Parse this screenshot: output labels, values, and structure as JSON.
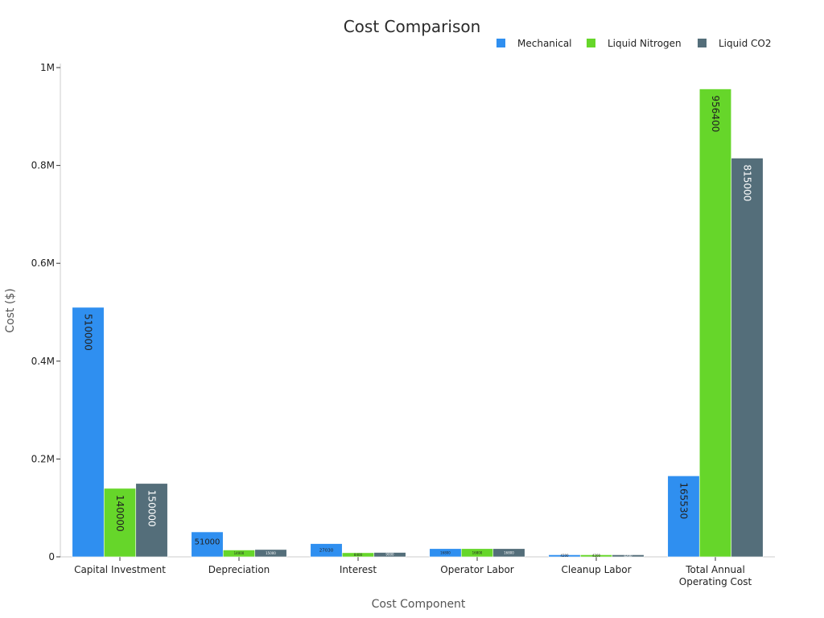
{
  "chart_data": {
    "type": "bar",
    "title": "Cost Comparison",
    "xlabel": "Cost Component",
    "ylabel": "Cost ($)",
    "ylim": [
      0,
      1000000
    ],
    "yticks": [
      {
        "value": 0,
        "label": "0"
      },
      {
        "value": 200000,
        "label": "0.2M"
      },
      {
        "value": 400000,
        "label": "0.4M"
      },
      {
        "value": 600000,
        "label": "0.6M"
      },
      {
        "value": 800000,
        "label": "0.8M"
      },
      {
        "value": 1000000,
        "label": "1M"
      }
    ],
    "categories": [
      [
        "Capital Investment"
      ],
      [
        "Depreciation"
      ],
      [
        "Interest"
      ],
      [
        "Operator Labor"
      ],
      [
        "Cleanup Labor"
      ],
      [
        "Total Annual",
        "Operating Cost"
      ]
    ],
    "legend_position": "top-right",
    "grid": false,
    "series": [
      {
        "name": "Mechanical",
        "color": "#2f8ff0",
        "values": [
          510000,
          51000,
          27030,
          16800,
          4200,
          165530
        ]
      },
      {
        "name": "Liquid Nitrogen",
        "color": "#66d62a",
        "values": [
          140000,
          14000,
          8400,
          16800,
          4200,
          956400
        ]
      },
      {
        "name": "Liquid CO2",
        "color": "#546e7a",
        "values": [
          150000,
          15000,
          9000,
          16800,
          4200,
          815000
        ]
      }
    ]
  }
}
